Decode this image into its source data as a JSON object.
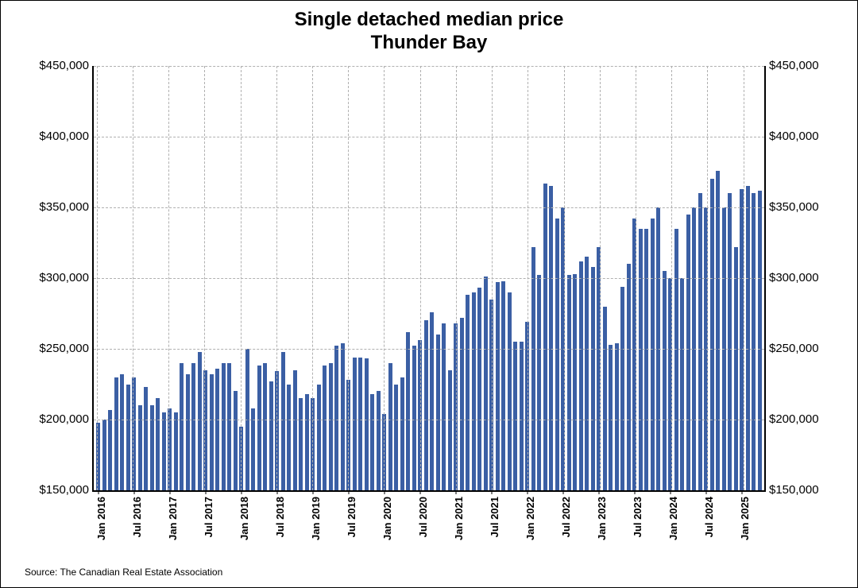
{
  "title_line1": "Single detached median price",
  "title_line2": "Thunder Bay",
  "source": "Source: The Canadian Real Estate Association",
  "chart": {
    "type": "bar",
    "bar_color": "#3b5fa4",
    "background_color": "#ffffff",
    "grid_color": "#b0b0b0",
    "ylim": [
      150000,
      450000
    ],
    "y_ticks": [
      150000,
      200000,
      250000,
      300000,
      350000,
      400000,
      450000
    ],
    "y_tick_labels": [
      "$150,000",
      "$200,000",
      "$250,000",
      "$300,000",
      "$350,000",
      "$400,000",
      "$450,000"
    ],
    "x_labels_every": 6,
    "title_fontsize": 24,
    "axis_fontsize": 15,
    "xlabel_fontsize": 13,
    "data": [
      {
        "label": "Jan 2016",
        "v": 198000
      },
      {
        "label": "Feb 2016",
        "v": 200000
      },
      {
        "label": "Mar 2016",
        "v": 207000
      },
      {
        "label": "Apr 2016",
        "v": 230000
      },
      {
        "label": "May 2016",
        "v": 232000
      },
      {
        "label": "Jun 2016",
        "v": 225000
      },
      {
        "label": "Jul 2016",
        "v": 230000
      },
      {
        "label": "Aug 2016",
        "v": 210000
      },
      {
        "label": "Sep 2016",
        "v": 223000
      },
      {
        "label": "Oct 2016",
        "v": 210000
      },
      {
        "label": "Nov 2016",
        "v": 215000
      },
      {
        "label": "Dec 2016",
        "v": 205000
      },
      {
        "label": "Jan 2017",
        "v": 208000
      },
      {
        "label": "Feb 2017",
        "v": 205000
      },
      {
        "label": "Mar 2017",
        "v": 240000
      },
      {
        "label": "Apr 2017",
        "v": 232000
      },
      {
        "label": "May 2017",
        "v": 240000
      },
      {
        "label": "Jun 2017",
        "v": 248000
      },
      {
        "label": "Jul 2017",
        "v": 235000
      },
      {
        "label": "Aug 2017",
        "v": 232000
      },
      {
        "label": "Sep 2017",
        "v": 236000
      },
      {
        "label": "Oct 2017",
        "v": 240000
      },
      {
        "label": "Nov 2017",
        "v": 240000
      },
      {
        "label": "Dec 2017",
        "v": 220000
      },
      {
        "label": "Jan 2018",
        "v": 195000
      },
      {
        "label": "Feb 2018",
        "v": 250000
      },
      {
        "label": "Mar 2018",
        "v": 208000
      },
      {
        "label": "Apr 2018",
        "v": 238000
      },
      {
        "label": "May 2018",
        "v": 240000
      },
      {
        "label": "Jun 2018",
        "v": 227000
      },
      {
        "label": "Jul 2018",
        "v": 234000
      },
      {
        "label": "Aug 2018",
        "v": 248000
      },
      {
        "label": "Sep 2018",
        "v": 225000
      },
      {
        "label": "Oct 2018",
        "v": 235000
      },
      {
        "label": "Nov 2018",
        "v": 215000
      },
      {
        "label": "Dec 2018",
        "v": 218000
      },
      {
        "label": "Jan 2019",
        "v": 215000
      },
      {
        "label": "Feb 2019",
        "v": 225000
      },
      {
        "label": "Mar 2019",
        "v": 238000
      },
      {
        "label": "Apr 2019",
        "v": 240000
      },
      {
        "label": "May 2019",
        "v": 252000
      },
      {
        "label": "Jun 2019",
        "v": 254000
      },
      {
        "label": "Jul 2019",
        "v": 228000
      },
      {
        "label": "Aug 2019",
        "v": 244000
      },
      {
        "label": "Sep 2019",
        "v": 244000
      },
      {
        "label": "Oct 2019",
        "v": 243000
      },
      {
        "label": "Nov 2019",
        "v": 218000
      },
      {
        "label": "Dec 2019",
        "v": 220000
      },
      {
        "label": "Jan 2020",
        "v": 204000
      },
      {
        "label": "Feb 2020",
        "v": 240000
      },
      {
        "label": "Mar 2020",
        "v": 225000
      },
      {
        "label": "Apr 2020",
        "v": 230000
      },
      {
        "label": "May 2020",
        "v": 262000
      },
      {
        "label": "Jun 2020",
        "v": 252000
      },
      {
        "label": "Jul 2020",
        "v": 256000
      },
      {
        "label": "Aug 2020",
        "v": 270000
      },
      {
        "label": "Sep 2020",
        "v": 276000
      },
      {
        "label": "Oct 2020",
        "v": 260000
      },
      {
        "label": "Nov 2020",
        "v": 268000
      },
      {
        "label": "Dec 2020",
        "v": 235000
      },
      {
        "label": "Jan 2021",
        "v": 268000
      },
      {
        "label": "Feb 2021",
        "v": 272000
      },
      {
        "label": "Mar 2021",
        "v": 288000
      },
      {
        "label": "Apr 2021",
        "v": 290000
      },
      {
        "label": "May 2021",
        "v": 293000
      },
      {
        "label": "Jun 2021",
        "v": 301000
      },
      {
        "label": "Jul 2021",
        "v": 285000
      },
      {
        "label": "Aug 2021",
        "v": 297000
      },
      {
        "label": "Sep 2021",
        "v": 298000
      },
      {
        "label": "Oct 2021",
        "v": 290000
      },
      {
        "label": "Nov 2021",
        "v": 255000
      },
      {
        "label": "Dec 2021",
        "v": 255000
      },
      {
        "label": "Jan 2022",
        "v": 269000
      },
      {
        "label": "Feb 2022",
        "v": 322000
      },
      {
        "label": "Mar 2022",
        "v": 302000
      },
      {
        "label": "Apr 2022",
        "v": 367000
      },
      {
        "label": "May 2022",
        "v": 365000
      },
      {
        "label": "Jun 2022",
        "v": 342000
      },
      {
        "label": "Jul 2022",
        "v": 350000
      },
      {
        "label": "Aug 2022",
        "v": 302000
      },
      {
        "label": "Sep 2022",
        "v": 303000
      },
      {
        "label": "Oct 2022",
        "v": 312000
      },
      {
        "label": "Nov 2022",
        "v": 315000
      },
      {
        "label": "Dec 2022",
        "v": 308000
      },
      {
        "label": "Jan 2023",
        "v": 322000
      },
      {
        "label": "Feb 2023",
        "v": 280000
      },
      {
        "label": "Mar 2023",
        "v": 253000
      },
      {
        "label": "Apr 2023",
        "v": 254000
      },
      {
        "label": "May 2023",
        "v": 294000
      },
      {
        "label": "Jun 2023",
        "v": 310000
      },
      {
        "label": "Jul 2023",
        "v": 342000
      },
      {
        "label": "Aug 2023",
        "v": 335000
      },
      {
        "label": "Sep 2023",
        "v": 335000
      },
      {
        "label": "Oct 2023",
        "v": 342000
      },
      {
        "label": "Nov 2023",
        "v": 350000
      },
      {
        "label": "Dec 2023",
        "v": 305000
      },
      {
        "label": "Jan 2024",
        "v": 300000
      },
      {
        "label": "Feb 2024",
        "v": 335000
      },
      {
        "label": "Mar 2024",
        "v": 300000
      },
      {
        "label": "Apr 2024",
        "v": 345000
      },
      {
        "label": "May 2024",
        "v": 350000
      },
      {
        "label": "Jun 2024",
        "v": 360000
      },
      {
        "label": "Jul 2024",
        "v": 350000
      },
      {
        "label": "Aug 2024",
        "v": 370000
      },
      {
        "label": "Sep 2024",
        "v": 376000
      },
      {
        "label": "Oct 2024",
        "v": 350000
      },
      {
        "label": "Nov 2024",
        "v": 360000
      },
      {
        "label": "Dec 2024",
        "v": 322000
      },
      {
        "label": "Jan 2025",
        "v": 363000
      },
      {
        "label": "Feb 2025",
        "v": 365000
      },
      {
        "label": "Mar 2025",
        "v": 360000
      },
      {
        "label": "Apr 2025",
        "v": 362000
      }
    ]
  }
}
